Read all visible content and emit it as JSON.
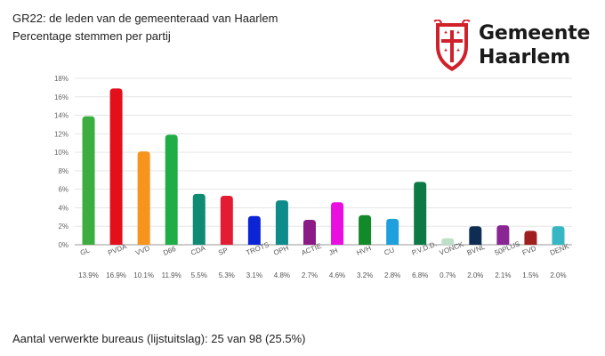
{
  "header": {
    "title": "GR22: de leden van de gemeenteraad van Haarlem",
    "subtitle": "Percentage stemmen per partij"
  },
  "logo": {
    "line1": "Gemeente",
    "line2": "Haarlem",
    "color": "#d0202a"
  },
  "chart_data": {
    "type": "bar",
    "categories": [
      "GL",
      "PVDA",
      "VVD",
      "D66",
      "CDA",
      "SP",
      "TROTS",
      "OPH",
      "ACTIE",
      "JH",
      "HVH",
      "CU",
      "P.V.D.D.",
      "VONCK",
      "BVNL",
      "50PLUS",
      "FVD",
      "DENK"
    ],
    "values": [
      13.9,
      16.9,
      10.1,
      11.9,
      5.5,
      5.3,
      3.1,
      4.8,
      2.7,
      4.6,
      3.2,
      2.8,
      6.8,
      0.7,
      2.0,
      2.1,
      1.5,
      2.0
    ],
    "value_labels": [
      "13.9%",
      "16.9%",
      "10.1%",
      "11.9%",
      "5.5%",
      "5.3%",
      "3.1%",
      "4.8%",
      "2.7%",
      "4.6%",
      "3.2%",
      "2.8%",
      "6.8%",
      "0.7%",
      "2.0%",
      "2.1%",
      "1.5%",
      "2.0%"
    ],
    "colors": [
      "#3cae3f",
      "#e3101c",
      "#f7941d",
      "#1fad45",
      "#0f8b73",
      "#e31c34",
      "#0b24d6",
      "#0e8b8b",
      "#8c1a86",
      "#e80fe0",
      "#128a2a",
      "#1ea0dc",
      "#0d7a45",
      "#bfe0c8",
      "#0f2d52",
      "#8a2694",
      "#a02020",
      "#36b7c3"
    ],
    "ylim": [
      0,
      18
    ],
    "yticks": [
      "0%",
      "2%",
      "4%",
      "6%",
      "8%",
      "10%",
      "12%",
      "14%",
      "16%",
      "18%"
    ],
    "grid": true,
    "title": "",
    "xlabel": "",
    "ylabel": ""
  },
  "footer": {
    "text": "Aantal verwerkte bureaus (lijstuitslag): 25 van 98 (25.5%)"
  }
}
